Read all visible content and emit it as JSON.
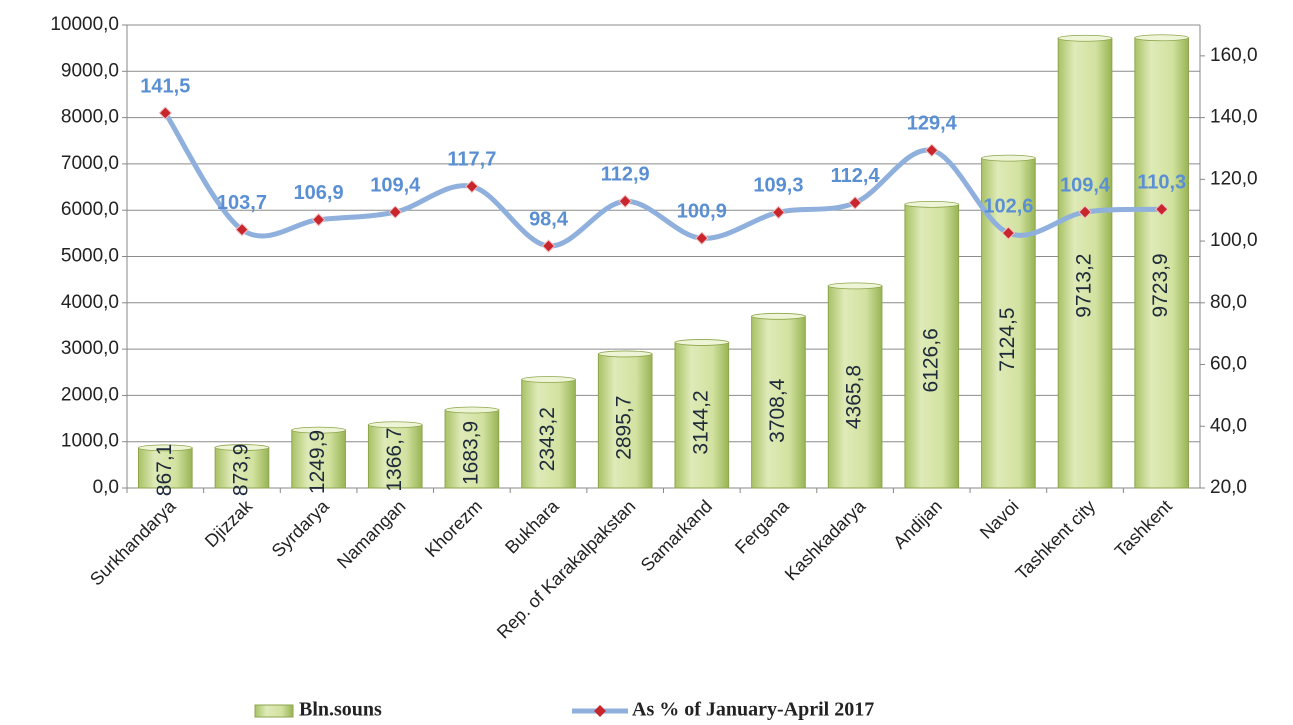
{
  "chart_data": {
    "type": "bar",
    "categories": [
      "Surkhandarya",
      "Djizzak",
      "Syrdarya",
      "Namangan",
      "Khorezm",
      "Bukhara",
      "Rep. of Karakalpakstan",
      "Samarkand",
      "Fergana",
      "Kashkadarya",
      "Andijan",
      "Navoi",
      "Tashkent city",
      "Tashkent"
    ],
    "series": [
      {
        "name": "Bln.souns",
        "type": "bar",
        "color": "#c9dc8f",
        "values": [
          867.1,
          873.9,
          1249.9,
          1366.7,
          1683.9,
          2343.2,
          2895.7,
          3144.2,
          3708.4,
          4365.8,
          6126.6,
          7124.5,
          9713.2,
          9723.9
        ],
        "value_labels": [
          "867,1",
          "873,9",
          "1249,9",
          "1366,7",
          "1683,9",
          "2343,2",
          "2895,7",
          "3144,2",
          "3708,4",
          "4365,8",
          "6126,6",
          "7124,5",
          "9713,2",
          "9723,9"
        ]
      },
      {
        "name": "As % of January-April 2017",
        "type": "line",
        "axis": "y2",
        "color": "#8fb0dc",
        "marker_color": "#c8262c",
        "values": [
          141.5,
          103.7,
          106.9,
          109.4,
          117.7,
          98.4,
          112.9,
          100.9,
          109.3,
          112.4,
          129.4,
          102.6,
          109.4,
          110.3
        ],
        "value_labels": [
          "141,5",
          "103,7",
          "106,9",
          "109,4",
          "117,7",
          "98,4",
          "112,9",
          "100,9",
          "109,3",
          "112,4",
          "129,4",
          "102,6",
          "109,4",
          "110,3"
        ]
      }
    ],
    "ylim": [
      0,
      10000
    ],
    "yticks": [
      {
        "value": 0,
        "label": "0,0"
      },
      {
        "value": 1000,
        "label": "1000,0"
      },
      {
        "value": 2000,
        "label": "2000,0"
      },
      {
        "value": 3000,
        "label": "3000,0"
      },
      {
        "value": 4000,
        "label": "4000,0"
      },
      {
        "value": 5000,
        "label": "5000,0"
      },
      {
        "value": 6000,
        "label": "6000,0"
      },
      {
        "value": 7000,
        "label": "7000,0"
      },
      {
        "value": 8000,
        "label": "8000,0"
      },
      {
        "value": 9000,
        "label": "9000,0"
      },
      {
        "value": 10000,
        "label": "10000,0"
      }
    ],
    "y2lim": [
      20,
      170
    ],
    "y2ticks": [
      {
        "value": 20,
        "label": "20,0"
      },
      {
        "value": 40,
        "label": "40,0"
      },
      {
        "value": 60,
        "label": "60,0"
      },
      {
        "value": 80,
        "label": "80,0"
      },
      {
        "value": 100,
        "label": "100,0"
      },
      {
        "value": 120,
        "label": "120,0"
      },
      {
        "value": 140,
        "label": "140,0"
      },
      {
        "value": 160,
        "label": "160,0"
      }
    ],
    "grid": true,
    "legend": "bottom"
  }
}
